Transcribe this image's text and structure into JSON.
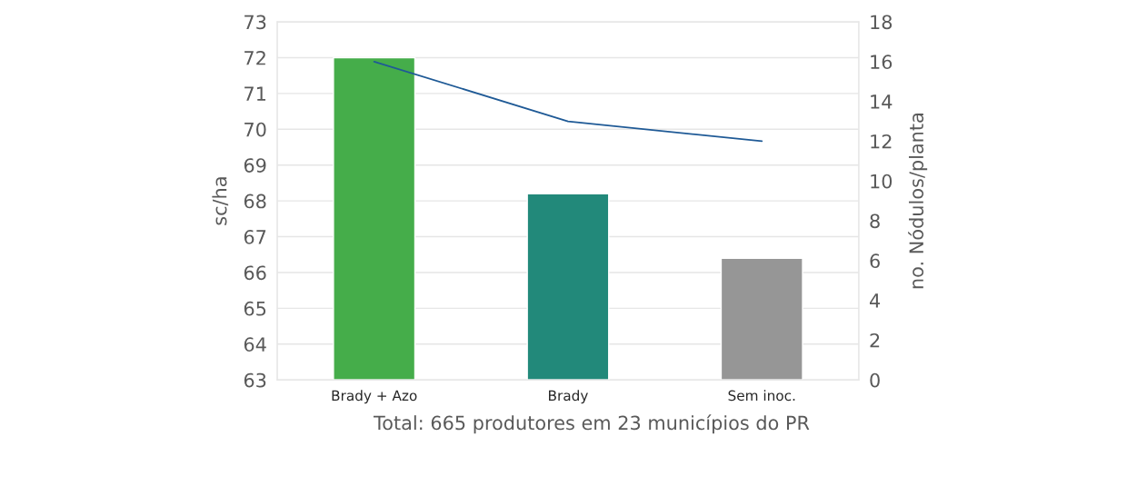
{
  "chart_data": {
    "type": "bar",
    "categories": [
      "Brady + Azo",
      "Brady",
      "Sem inoc."
    ],
    "series": [
      {
        "colors": [
          "#45ad4a",
          "#22897a",
          "#969696"
        ],
        "values": [
          72.0,
          68.2,
          66.4
        ]
      },
      {
        "type": "line",
        "axis": "y2",
        "color": "#1f5a96",
        "values": [
          16,
          13,
          12
        ]
      }
    ],
    "ylabel": "sc/ha",
    "y2label": "no. Nódulos/planta",
    "ylim": [
      63,
      73
    ],
    "yticks": [
      63,
      64,
      65,
      66,
      67,
      68,
      69,
      70,
      71,
      72,
      73
    ],
    "y2lim": [
      0,
      18
    ],
    "y2ticks": [
      0,
      2,
      4,
      6,
      8,
      10,
      12,
      14,
      16,
      18
    ],
    "grid": "y",
    "annotations": [
      "Total: 665 produtores em 23 municípios do PR"
    ]
  }
}
